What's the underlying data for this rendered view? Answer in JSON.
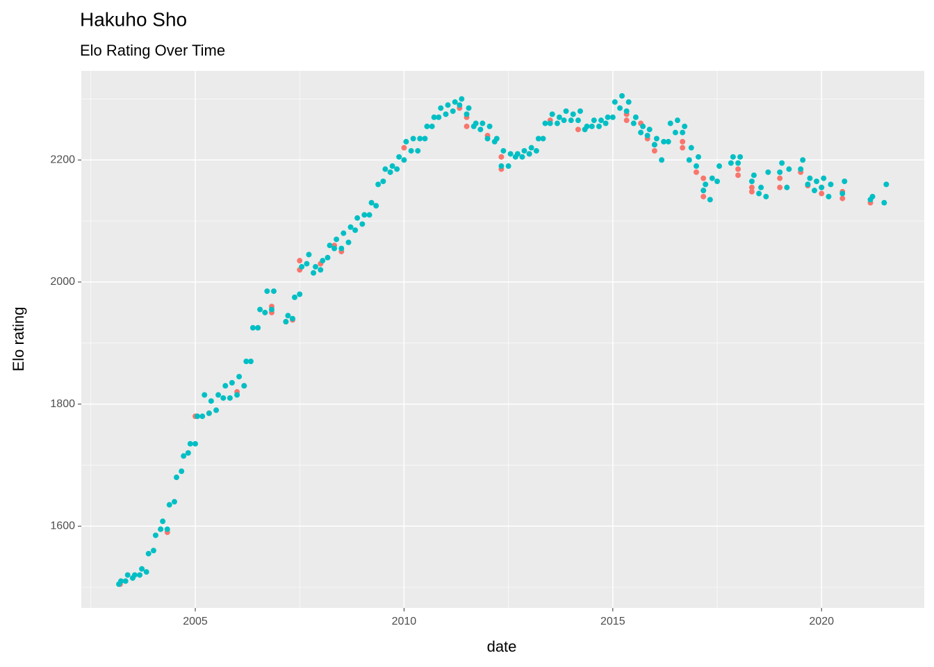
{
  "chart_data": {
    "type": "scatter",
    "title": "Hakuho Sho",
    "subtitle": "Elo Rating Over Time",
    "x_label": "date",
    "y_label": "Elo rating",
    "xlim": [
      2002.27,
      2022.46
    ],
    "xticks": [
      2005,
      2010,
      2015,
      2020
    ],
    "ylim": [
      1466,
      2346
    ],
    "yticks": [
      1600,
      1800,
      2000,
      2200
    ],
    "grid": true,
    "series": [
      {
        "color": "#F8766D",
        "x": [
          2003.2,
          2004.17,
          2004.33,
          2005.0,
          2005.33,
          2006.0,
          2006.17,
          2006.83,
          2006.83,
          2007.17,
          2007.33,
          2007.5,
          2007.5,
          2008.0,
          2008.33,
          2008.5,
          2010.0,
          2011.33,
          2011.5,
          2011.5,
          2012.0,
          2012.33,
          2012.33,
          2013.0,
          2013.5,
          2014.17,
          2015.33,
          2015.33,
          2015.67,
          2015.83,
          2016.0,
          2016.0,
          2016.67,
          2016.67,
          2017.0,
          2017.17,
          2017.17,
          2017.17,
          2018.0,
          2018.0,
          2018.33,
          2018.33,
          2019.0,
          2019.0,
          2019.5,
          2019.67,
          2020.0,
          2020.0,
          2020.5,
          2020.5,
          2021.17
        ],
        "values": [
          1505,
          1595,
          1590,
          1780,
          1785,
          1820,
          1830,
          1950,
          1960,
          1935,
          1938,
          2020,
          2035,
          2030,
          2060,
          2050,
          2220,
          2285,
          2270,
          2255,
          2240,
          2185,
          2205,
          2210,
          2265,
          2250,
          2275,
          2265,
          2260,
          2235,
          2225,
          2215,
          2230,
          2220,
          2180,
          2140,
          2150,
          2170,
          2185,
          2175,
          2155,
          2148,
          2155,
          2170,
          2180,
          2158,
          2145,
          2155,
          2137,
          2148,
          2130
        ]
      },
      {
        "color": "#00BFC4",
        "x": [
          2003.17,
          2003.22,
          2003.33,
          2003.38,
          2003.5,
          2003.55,
          2003.67,
          2003.72,
          2003.83,
          2003.88,
          2004.0,
          2004.05,
          2004.17,
          2004.22,
          2004.33,
          2004.38,
          2004.5,
          2004.55,
          2004.67,
          2004.72,
          2004.83,
          2004.88,
          2005.0,
          2005.05,
          2005.17,
          2005.22,
          2005.33,
          2005.38,
          2005.5,
          2005.55,
          2005.67,
          2005.72,
          2005.83,
          2005.88,
          2006.0,
          2006.05,
          2006.17,
          2006.22,
          2006.33,
          2006.38,
          2006.5,
          2006.55,
          2006.67,
          2006.72,
          2006.83,
          2006.88,
          2007.17,
          2007.22,
          2007.33,
          2007.38,
          2007.5,
          2007.55,
          2007.67,
          2007.72,
          2007.83,
          2007.88,
          2008.0,
          2008.05,
          2008.17,
          2008.22,
          2008.33,
          2008.38,
          2008.5,
          2008.55,
          2008.67,
          2008.72,
          2008.83,
          2008.88,
          2009.0,
          2009.05,
          2009.17,
          2009.22,
          2009.33,
          2009.38,
          2009.5,
          2009.55,
          2009.67,
          2009.72,
          2009.83,
          2009.88,
          2010.0,
          2010.05,
          2010.17,
          2010.22,
          2010.33,
          2010.38,
          2010.5,
          2010.55,
          2010.67,
          2010.72,
          2010.83,
          2010.88,
          2011.0,
          2011.05,
          2011.17,
          2011.22,
          2011.33,
          2011.38,
          2011.5,
          2011.55,
          2011.67,
          2011.72,
          2011.83,
          2011.88,
          2012.0,
          2012.05,
          2012.17,
          2012.22,
          2012.33,
          2012.38,
          2012.5,
          2012.55,
          2012.67,
          2012.72,
          2012.83,
          2012.88,
          2013.0,
          2013.05,
          2013.17,
          2013.22,
          2013.33,
          2013.38,
          2013.5,
          2013.55,
          2013.67,
          2013.72,
          2013.83,
          2013.88,
          2014.0,
          2014.05,
          2014.17,
          2014.22,
          2014.33,
          2014.38,
          2014.5,
          2014.55,
          2014.67,
          2014.72,
          2014.83,
          2014.88,
          2015.0,
          2015.05,
          2015.17,
          2015.22,
          2015.33,
          2015.38,
          2015.5,
          2015.55,
          2015.67,
          2015.72,
          2015.83,
          2015.88,
          2016.0,
          2016.05,
          2016.17,
          2016.22,
          2016.33,
          2016.38,
          2016.5,
          2016.55,
          2016.67,
          2016.72,
          2016.83,
          2016.88,
          2017.0,
          2017.05,
          2017.17,
          2017.22,
          2017.33,
          2017.38,
          2017.5,
          2017.55,
          2017.83,
          2017.88,
          2018.0,
          2018.05,
          2018.33,
          2018.38,
          2018.5,
          2018.55,
          2018.67,
          2018.72,
          2019.0,
          2019.05,
          2019.17,
          2019.22,
          2019.5,
          2019.55,
          2019.67,
          2019.72,
          2019.83,
          2019.88,
          2020.0,
          2020.05,
          2020.17,
          2020.22,
          2020.5,
          2020.55,
          2021.17,
          2021.22,
          2021.5,
          2021.55
        ],
        "values": [
          1505,
          1510,
          1510,
          1520,
          1515,
          1520,
          1520,
          1530,
          1525,
          1555,
          1560,
          1585,
          1595,
          1608,
          1595,
          1635,
          1640,
          1680,
          1690,
          1715,
          1720,
          1735,
          1735,
          1780,
          1780,
          1815,
          1785,
          1805,
          1790,
          1815,
          1810,
          1830,
          1810,
          1835,
          1815,
          1845,
          1830,
          1870,
          1870,
          1925,
          1925,
          1955,
          1950,
          1985,
          1955,
          1985,
          1935,
          1945,
          1940,
          1975,
          1980,
          2025,
          2030,
          2045,
          2015,
          2025,
          2020,
          2035,
          2040,
          2060,
          2055,
          2070,
          2055,
          2080,
          2065,
          2090,
          2085,
          2105,
          2095,
          2110,
          2110,
          2130,
          2125,
          2160,
          2165,
          2185,
          2180,
          2190,
          2185,
          2205,
          2200,
          2230,
          2215,
          2235,
          2215,
          2235,
          2235,
          2255,
          2255,
          2270,
          2270,
          2285,
          2275,
          2290,
          2280,
          2295,
          2290,
          2300,
          2275,
          2285,
          2255,
          2260,
          2250,
          2260,
          2235,
          2255,
          2230,
          2235,
          2190,
          2215,
          2190,
          2210,
          2205,
          2210,
          2205,
          2215,
          2210,
          2220,
          2215,
          2235,
          2235,
          2260,
          2260,
          2275,
          2260,
          2270,
          2265,
          2280,
          2265,
          2275,
          2265,
          2280,
          2250,
          2255,
          2255,
          2265,
          2255,
          2265,
          2260,
          2270,
          2270,
          2295,
          2285,
          2305,
          2280,
          2295,
          2260,
          2270,
          2245,
          2255,
          2240,
          2250,
          2225,
          2235,
          2200,
          2230,
          2230,
          2260,
          2245,
          2265,
          2245,
          2255,
          2200,
          2220,
          2190,
          2205,
          2150,
          2160,
          2135,
          2170,
          2165,
          2190,
          2195,
          2205,
          2195,
          2205,
          2165,
          2175,
          2145,
          2155,
          2140,
          2180,
          2180,
          2195,
          2155,
          2185,
          2185,
          2200,
          2160,
          2170,
          2150,
          2165,
          2155,
          2170,
          2140,
          2160,
          2145,
          2165,
          2135,
          2140,
          2130,
          2160
        ]
      }
    ]
  }
}
